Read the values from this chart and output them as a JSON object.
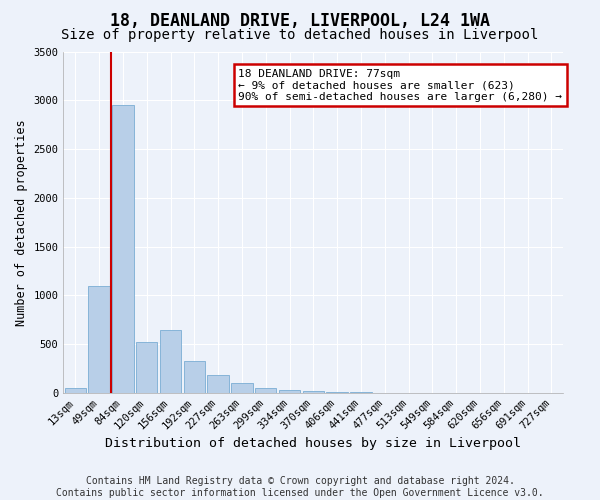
{
  "title": "18, DEANLAND DRIVE, LIVERPOOL, L24 1WA",
  "subtitle": "Size of property relative to detached houses in Liverpool",
  "xlabel": "Distribution of detached houses by size in Liverpool",
  "ylabel": "Number of detached properties",
  "categories": [
    "13sqm",
    "49sqm",
    "84sqm",
    "120sqm",
    "156sqm",
    "192sqm",
    "227sqm",
    "263sqm",
    "299sqm",
    "334sqm",
    "370sqm",
    "406sqm",
    "441sqm",
    "477sqm",
    "513sqm",
    "549sqm",
    "584sqm",
    "620sqm",
    "656sqm",
    "691sqm",
    "727sqm"
  ],
  "values": [
    50,
    1100,
    2950,
    525,
    650,
    325,
    185,
    100,
    50,
    30,
    18,
    10,
    6,
    4,
    3,
    2,
    1,
    1,
    0,
    0,
    0
  ],
  "bar_color": "#b8cfe8",
  "bar_edge_color": "#7aadd4",
  "annotation_text": "18 DEANLAND DRIVE: 77sqm\n← 9% of detached houses are smaller (623)\n90% of semi-detached houses are larger (6,280) →",
  "annotation_box_color": "#ffffff",
  "annotation_box_edge": "#cc0000",
  "vline_color": "#cc0000",
  "vline_x": 1.5,
  "ylim": [
    0,
    3500
  ],
  "yticks": [
    0,
    500,
    1000,
    1500,
    2000,
    2500,
    3000,
    3500
  ],
  "footer": "Contains HM Land Registry data © Crown copyright and database right 2024.\nContains public sector information licensed under the Open Government Licence v3.0.",
  "bg_color": "#edf2fa",
  "plot_bg_color": "#edf2fa",
  "grid_color": "#ffffff",
  "title_fontsize": 12,
  "subtitle_fontsize": 10,
  "xlabel_fontsize": 9.5,
  "ylabel_fontsize": 8.5,
  "tick_fontsize": 7.5,
  "annot_fontsize": 8,
  "footer_fontsize": 7
}
